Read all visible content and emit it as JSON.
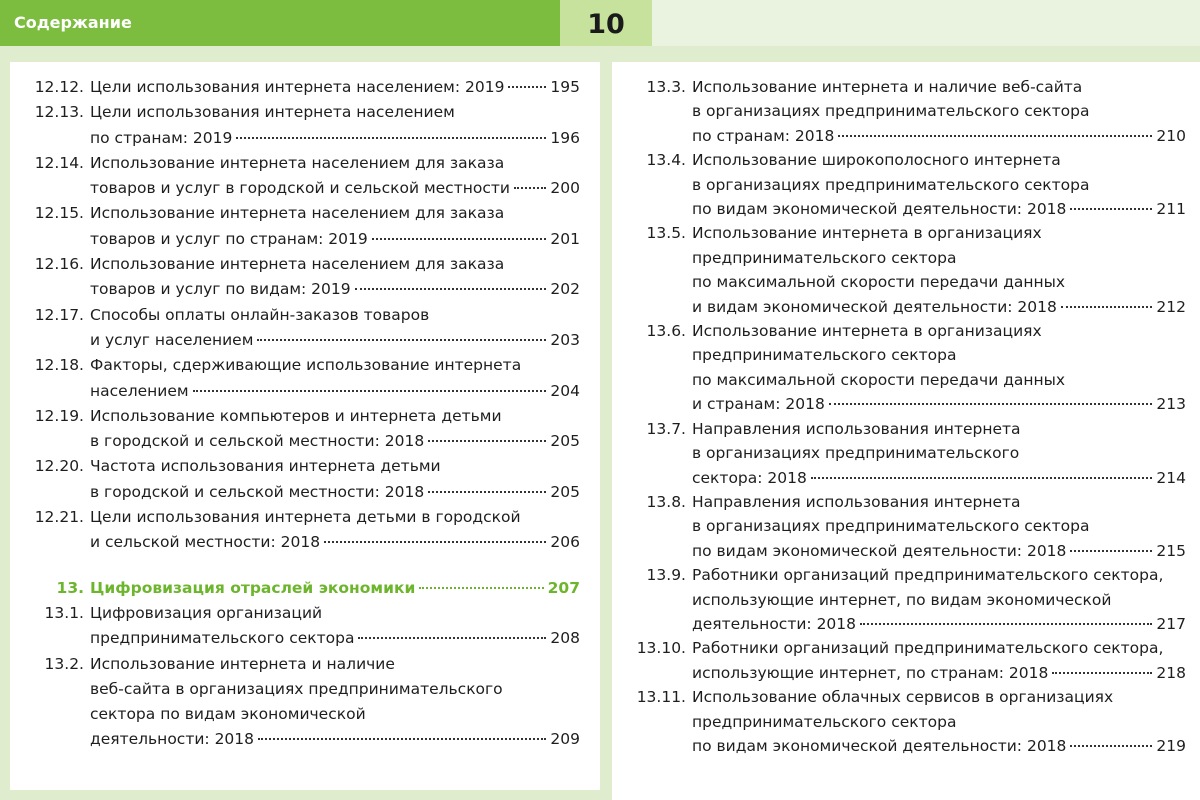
{
  "header": {
    "title": "Содержание",
    "page_number": "10"
  },
  "section": {
    "number": "13.",
    "title": "Цифровизация отраслей экономики",
    "page": "207"
  },
  "left_entries": [
    {
      "number": "12.12.",
      "lines": [
        "Цели использования интернета населением: 2019"
      ],
      "page": "195"
    },
    {
      "number": "12.13.",
      "lines": [
        "Цели использования интернета населением",
        "по странам: 2019"
      ],
      "page": "196"
    },
    {
      "number": "12.14.",
      "lines": [
        "Использование интернета населением для заказа",
        "товаров и услуг в городской и сельской местности"
      ],
      "page": "200"
    },
    {
      "number": "12.15.",
      "lines": [
        "Использование интернета населением для заказа",
        "товаров и услуг по странам: 2019"
      ],
      "page": "201"
    },
    {
      "number": "12.16.",
      "lines": [
        "Использование интернета населением для заказа",
        "товаров и услуг по видам: 2019"
      ],
      "page": "202"
    },
    {
      "number": "12.17.",
      "lines": [
        "Способы оплаты онлайн-заказов товаров",
        "и услуг населением"
      ],
      "page": "203"
    },
    {
      "number": "12.18.",
      "lines": [
        "Факторы, сдерживающие использование интернета",
        "населением"
      ],
      "page": "204"
    },
    {
      "number": "12.19.",
      "lines": [
        "Использование компьютеров и интернета детьми",
        "в городской и сельской местности: 2018"
      ],
      "page": "205"
    },
    {
      "number": "12.20.",
      "lines": [
        "Частота использования интернета детьми",
        "в городской и сельской местности: 2018"
      ],
      "page": "205"
    },
    {
      "number": "12.21.",
      "lines": [
        "Цели использования интернета детьми в городской",
        "и сельской местности: 2018"
      ],
      "page": "206"
    }
  ],
  "left_entries_after": [
    {
      "number": "13.1.",
      "lines": [
        "Цифровизация организаций",
        "предпринимательского сектора"
      ],
      "page": "208"
    },
    {
      "number": "13.2.",
      "lines": [
        "Использование интернета и наличие",
        "веб-сайта в организациях предпринимательского",
        "сектора по видам экономической",
        "деятельности: 2018"
      ],
      "page": "209"
    }
  ],
  "right_entries": [
    {
      "number": "13.3.",
      "lines": [
        "Использование интернета и наличие веб-сайта",
        "в организациях предпринимательского сектора",
        "по странам: 2018"
      ],
      "page": "210"
    },
    {
      "number": "13.4.",
      "lines": [
        "Использование широкополосного интернета",
        "в организациях предпринимательского сектора",
        "по видам экономической деятельности: 2018"
      ],
      "page": "211"
    },
    {
      "number": "13.5.",
      "lines": [
        "Использование интернета в организациях",
        "предпринимательского сектора",
        "по максимальной скорости передачи данных",
        "и видам экономической деятельности: 2018"
      ],
      "page": "212"
    },
    {
      "number": "13.6.",
      "lines": [
        "Использование интернета в организациях",
        "предпринимательского сектора",
        "по максимальной скорости передачи данных",
        "и странам: 2018"
      ],
      "page": "213"
    },
    {
      "number": "13.7.",
      "lines": [
        "Направления использования интернета",
        "в организациях предпринимательского",
        "сектора: 2018"
      ],
      "page": "214"
    },
    {
      "number": "13.8.",
      "lines": [
        "Направления использования интернета",
        "в организациях предпринимательского сектора",
        "по видам экономической деятельности: 2018"
      ],
      "page": "215"
    },
    {
      "number": "13.9.",
      "lines": [
        "Работники организаций предпринимательского сектора,",
        "использующие интернет, по видам экономической",
        "деятельности: 2018"
      ],
      "page": "217"
    },
    {
      "number": "13.10.",
      "lines": [
        "Работники организаций предпринимательского сектора,",
        "использующие интернет, по странам: 2018"
      ],
      "page": "218"
    },
    {
      "number": "13.11.",
      "lines": [
        "Использование облачных сервисов в организациях",
        "предпринимательского сектора",
        "по видам экономической деятельности: 2018"
      ],
      "page": "219"
    }
  ]
}
